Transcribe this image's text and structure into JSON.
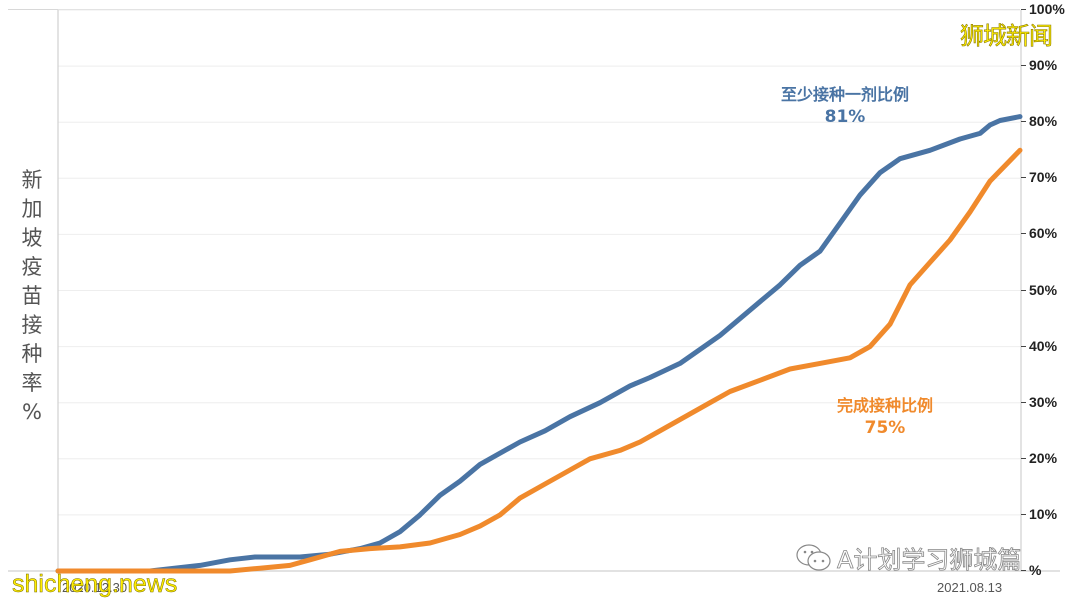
{
  "chart_data": {
    "type": "line",
    "title": "",
    "ylabel": "新加坡疫苗接种率%",
    "xlabel": "",
    "ylim": [
      0,
      100
    ],
    "y_axis_position": "right",
    "y_ticks": [
      "100%",
      "90%",
      "80%",
      "70%",
      "60%",
      "50%",
      "40%",
      "30%",
      "20%",
      "10%",
      "%"
    ],
    "x_ticks": [
      "2020.12.30",
      "2021.08.13"
    ],
    "x_range": [
      "2020.12.30",
      "2021.08.13"
    ],
    "grid": "horizontal",
    "legend": "inline labels",
    "series": [
      {
        "name": "至少接种一剂比例",
        "final_label": "81%",
        "color": "#4a74a4",
        "points": [
          [
            58,
            0
          ],
          [
            150,
            0
          ],
          [
            200,
            1
          ],
          [
            230,
            2
          ],
          [
            255,
            2.5
          ],
          [
            300,
            2.5
          ],
          [
            330,
            3
          ],
          [
            360,
            4
          ],
          [
            380,
            5
          ],
          [
            400,
            7
          ],
          [
            420,
            10
          ],
          [
            440,
            13.5
          ],
          [
            460,
            16
          ],
          [
            480,
            19
          ],
          [
            500,
            21
          ],
          [
            520,
            23
          ],
          [
            545,
            25
          ],
          [
            570,
            27.5
          ],
          [
            600,
            30
          ],
          [
            630,
            33
          ],
          [
            650,
            34.5
          ],
          [
            680,
            37
          ],
          [
            700,
            39.5
          ],
          [
            720,
            42
          ],
          [
            740,
            45
          ],
          [
            760,
            48
          ],
          [
            780,
            51
          ],
          [
            800,
            54.5
          ],
          [
            820,
            57
          ],
          [
            840,
            62
          ],
          [
            860,
            67
          ],
          [
            880,
            71
          ],
          [
            900,
            73.5
          ],
          [
            930,
            75
          ],
          [
            960,
            77
          ],
          [
            980,
            78
          ],
          [
            990,
            79.5
          ],
          [
            1000,
            80.3
          ],
          [
            1020,
            81
          ]
        ]
      },
      {
        "name": "完成接种比例",
        "final_label": "75%",
        "color": "#f08a2c",
        "points": [
          [
            58,
            0
          ],
          [
            230,
            0
          ],
          [
            260,
            0.5
          ],
          [
            290,
            1
          ],
          [
            310,
            2
          ],
          [
            340,
            3.5
          ],
          [
            370,
            4
          ],
          [
            400,
            4.3
          ],
          [
            430,
            5
          ],
          [
            460,
            6.5
          ],
          [
            480,
            8
          ],
          [
            500,
            10
          ],
          [
            520,
            13
          ],
          [
            545,
            15.5
          ],
          [
            570,
            18
          ],
          [
            590,
            20
          ],
          [
            620,
            21.5
          ],
          [
            640,
            23
          ],
          [
            660,
            25
          ],
          [
            690,
            28
          ],
          [
            710,
            30
          ],
          [
            730,
            32
          ],
          [
            760,
            34
          ],
          [
            790,
            36
          ],
          [
            820,
            37
          ],
          [
            850,
            38
          ],
          [
            870,
            40
          ],
          [
            890,
            44
          ],
          [
            910,
            51
          ],
          [
            930,
            55
          ],
          [
            950,
            59
          ],
          [
            970,
            64
          ],
          [
            990,
            69.5
          ],
          [
            1020,
            75
          ]
        ]
      }
    ]
  },
  "labels": {
    "ylabel_chars": [
      "新",
      "加",
      "坡",
      "疫",
      "苗",
      "接",
      "种",
      "率",
      "%"
    ],
    "series1_name": "至少接种一剂比例",
    "series1_pct": "81%",
    "series2_name": "完成接种比例",
    "series2_pct": "75%",
    "xtick_start": "2020.12.30",
    "xtick_end": "2021.08.13"
  },
  "watermarks": {
    "top_right": "狮城新闻",
    "bottom_left": "shicheng.news",
    "wechat": "A计划学习狮城篇"
  },
  "colors": {
    "blue": "#4a74a4",
    "orange": "#f08a2c",
    "grid": "#eeeeee",
    "axis": "#d0d0d0"
  }
}
